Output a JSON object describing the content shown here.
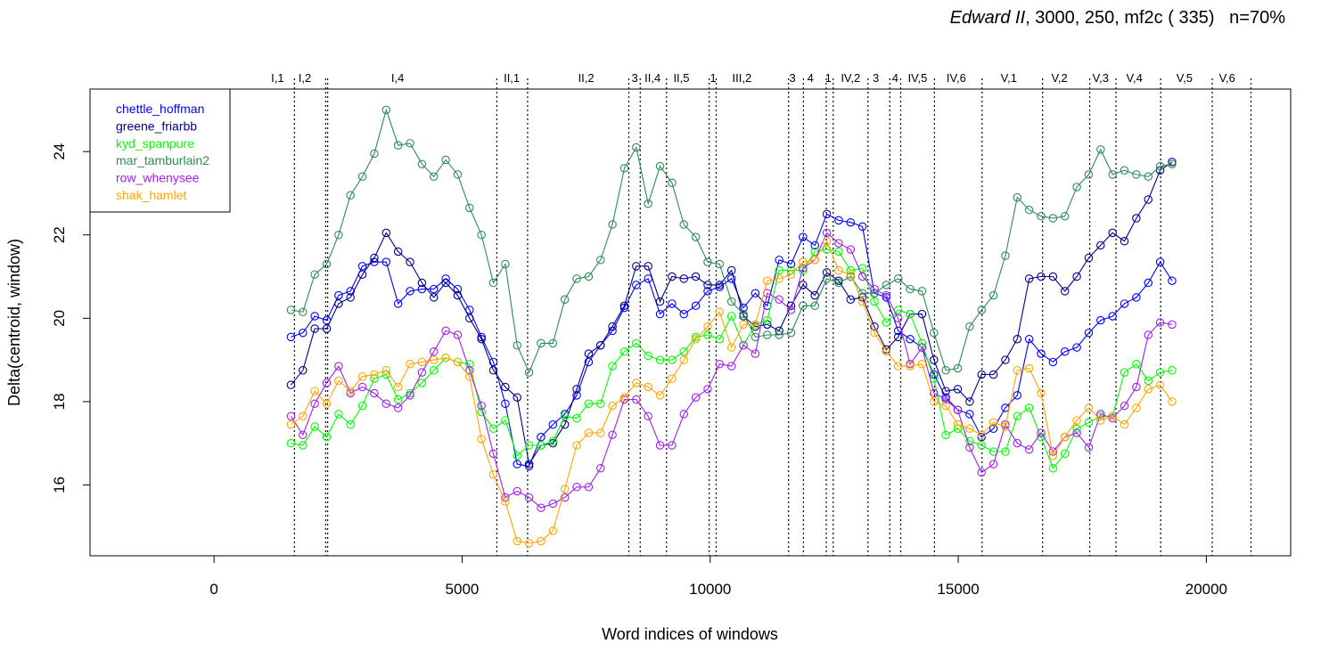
{
  "title": {
    "italic": "Edward II",
    "rest": ", 3000, 250, mf2c ( 335)   n=70%"
  },
  "chart_data": {
    "type": "line",
    "xlabel": "Word indices of windows",
    "ylabel": "Delta(centroid, window)",
    "xlim": [
      -2500,
      21700
    ],
    "ylim": [
      14.3,
      25.5
    ],
    "xticks": [
      0,
      5000,
      10000,
      15000,
      20000
    ],
    "xtick_labels": [
      "0",
      "5000",
      "10000",
      "15000",
      "20000"
    ],
    "yticks": [
      16,
      18,
      20,
      22,
      24
    ],
    "ytick_labels": [
      "16",
      "18",
      "20",
      "22",
      "24"
    ],
    "grid": false,
    "legend_position": "top-left",
    "scene_boundaries": [
      1620,
      2250,
      2290,
      5700,
      6320,
      8360,
      8590,
      9120,
      9980,
      10120,
      11580,
      11880,
      12340,
      12480,
      13180,
      13620,
      13840,
      14520,
      15480,
      16700,
      17650,
      18180,
      19080,
      20120,
      20900
    ],
    "scene_labels": [
      {
        "label": "I,1",
        "x": 1280
      },
      {
        "label": "I,2",
        "x": 1830
      },
      {
        "label": "I,4",
        "x": 3700
      },
      {
        "label": "II,1",
        "x": 6000
      },
      {
        "label": "II,2",
        "x": 7500
      },
      {
        "label": "3",
        "x": 8480
      },
      {
        "label": "II,4",
        "x": 8840
      },
      {
        "label": "II,5",
        "x": 9420
      },
      {
        "label": "1",
        "x": 10060
      },
      {
        "label": "III,2",
        "x": 10640
      },
      {
        "label": "3",
        "x": 11660
      },
      {
        "label": "4",
        "x": 12020
      },
      {
        "label": "1",
        "x": 12380
      },
      {
        "label": "IV,2",
        "x": 12830
      },
      {
        "label": "3",
        "x": 13340
      },
      {
        "label": "4",
        "x": 13730
      },
      {
        "label": "IV,5",
        "x": 14180
      },
      {
        "label": "IV,6",
        "x": 14960
      },
      {
        "label": "V,1",
        "x": 16020
      },
      {
        "label": "V,2",
        "x": 17040
      },
      {
        "label": "V,3",
        "x": 17870
      },
      {
        "label": "V,4",
        "x": 18550
      },
      {
        "label": "V,5",
        "x": 19560
      },
      {
        "label": "V,6",
        "x": 20420
      }
    ],
    "x": [
      1550,
      1790,
      2030,
      2270,
      2510,
      2750,
      2990,
      3230,
      3470,
      3710,
      3950,
      4190,
      4430,
      4670,
      4910,
      5150,
      5390,
      5630,
      5870,
      6110,
      6350,
      6590,
      6830,
      7070,
      7310,
      7550,
      7790,
      8030,
      8270,
      8510,
      8750,
      8990,
      9230,
      9470,
      9710,
      9950,
      10190,
      10430,
      10670,
      10910,
      11150,
      11390,
      11630,
      11870,
      12110,
      12350,
      12590,
      12830,
      13070,
      13310,
      13550,
      13790,
      14030,
      14270,
      14510,
      14750,
      14990,
      15230,
      15470,
      15710,
      15950,
      16190,
      16430,
      16670,
      16910,
      17150,
      17390,
      17630,
      17870,
      18110,
      18350,
      18590,
      18830,
      19070,
      19310
    ],
    "series": [
      {
        "name": "chettle_hoffman",
        "color": "#0000ff",
        "values": [
          19.55,
          19.65,
          20.05,
          19.95,
          20.55,
          20.65,
          21.25,
          21.35,
          21.35,
          20.35,
          20.65,
          20.7,
          20.7,
          20.95,
          20.7,
          20.2,
          19.55,
          18.95,
          17.95,
          16.5,
          16.45,
          17.15,
          17.45,
          17.7,
          18.15,
          18.95,
          19.35,
          19.7,
          20.25,
          20.8,
          20.95,
          20.1,
          20.35,
          20.1,
          20.3,
          20.65,
          20.75,
          20.95,
          20.25,
          20.6,
          20.3,
          21.4,
          21.3,
          21.95,
          21.75,
          22.5,
          22.35,
          22.3,
          22.2,
          20.6,
          20.5,
          19.7,
          19.5,
          19.3,
          18.65,
          18.1,
          17.8,
          17.7,
          17.15,
          17.35,
          17.85,
          18.15,
          19.5,
          19.15,
          18.95,
          19.2,
          19.3,
          19.65,
          19.95,
          20.05,
          20.35,
          20.5,
          20.85,
          21.35,
          20.9
        ]
      },
      {
        "name": "greene_friarbb",
        "color": "#00008b",
        "values": [
          18.4,
          18.75,
          19.75,
          19.75,
          20.35,
          20.5,
          21.05,
          21.45,
          22.05,
          21.6,
          21.35,
          20.85,
          20.5,
          20.85,
          20.55,
          20.0,
          19.5,
          18.75,
          18.35,
          18.1,
          16.5,
          16.95,
          17.0,
          17.45,
          18.3,
          19.15,
          19.35,
          19.8,
          20.3,
          21.25,
          21.25,
          20.4,
          21.0,
          20.95,
          21.0,
          20.8,
          20.8,
          21.15,
          20.05,
          19.8,
          19.85,
          19.7,
          20.3,
          20.8,
          20.55,
          21.1,
          20.9,
          20.45,
          20.5,
          19.8,
          19.25,
          19.55,
          20.1,
          20.1,
          19.0,
          18.25,
          18.3,
          18.0,
          18.65,
          18.65,
          19.0,
          19.5,
          20.95,
          21.0,
          21.0,
          20.65,
          21.0,
          21.45,
          21.75,
          22.05,
          21.85,
          22.4,
          22.85,
          23.55,
          23.75
        ]
      },
      {
        "name": "kyd_spanpure",
        "color": "#00ff00",
        "values": [
          17.0,
          16.95,
          17.4,
          17.15,
          17.7,
          17.45,
          17.9,
          18.55,
          18.65,
          18.05,
          18.2,
          18.45,
          18.75,
          19.05,
          18.95,
          18.9,
          17.75,
          17.35,
          17.55,
          16.7,
          16.95,
          16.95,
          17.05,
          17.65,
          17.6,
          17.95,
          17.95,
          18.85,
          19.2,
          19.4,
          19.1,
          19.0,
          19.0,
          19.2,
          19.55,
          19.6,
          19.5,
          20.05,
          19.35,
          19.85,
          19.95,
          21.15,
          21.15,
          21.15,
          21.6,
          21.65,
          21.6,
          21.15,
          21.2,
          20.4,
          19.9,
          20.2,
          20.1,
          19.4,
          18.55,
          17.2,
          17.35,
          17.05,
          16.95,
          16.8,
          16.8,
          17.65,
          17.85,
          17.15,
          16.4,
          16.75,
          17.35,
          17.5,
          17.65,
          17.65,
          18.7,
          18.9,
          18.5,
          18.7,
          18.75
        ]
      },
      {
        "name": "mar_tamburlain2",
        "color": "#2e8b57",
        "values": [
          20.2,
          20.15,
          21.05,
          21.3,
          22.0,
          22.95,
          23.4,
          23.95,
          25.0,
          24.15,
          24.2,
          23.7,
          23.4,
          23.8,
          23.45,
          22.65,
          22.0,
          20.85,
          21.3,
          19.35,
          18.7,
          19.4,
          19.4,
          20.45,
          20.95,
          21.0,
          21.4,
          22.25,
          23.6,
          24.1,
          22.75,
          23.65,
          23.25,
          22.25,
          21.95,
          21.35,
          21.3,
          20.4,
          20.1,
          19.55,
          19.6,
          19.6,
          19.65,
          20.3,
          20.3,
          20.95,
          20.85,
          21.0,
          20.6,
          20.6,
          20.8,
          20.95,
          20.7,
          20.65,
          19.65,
          18.75,
          18.8,
          19.8,
          20.2,
          20.55,
          21.5,
          22.9,
          22.6,
          22.45,
          22.4,
          22.45,
          23.15,
          23.45,
          24.05,
          23.45,
          23.55,
          23.45,
          23.4,
          23.65,
          23.7
        ]
      },
      {
        "name": "row_whenysee",
        "color": "#a020f0",
        "values": [
          17.65,
          17.2,
          17.95,
          18.45,
          18.85,
          18.2,
          18.35,
          18.2,
          17.95,
          17.85,
          18.15,
          18.7,
          19.2,
          19.7,
          19.6,
          18.75,
          17.9,
          16.75,
          15.7,
          15.85,
          15.7,
          15.45,
          15.55,
          15.7,
          15.95,
          15.95,
          16.4,
          17.2,
          18.05,
          18.05,
          17.65,
          16.95,
          16.95,
          17.7,
          18.1,
          18.3,
          18.9,
          18.85,
          19.35,
          19.15,
          20.6,
          20.45,
          20.2,
          21.2,
          21.4,
          22.05,
          21.8,
          21.65,
          21.0,
          20.7,
          20.55,
          20.0,
          18.9,
          19.3,
          18.2,
          18.05,
          17.8,
          16.9,
          16.3,
          16.5,
          17.45,
          17.0,
          16.85,
          17.25,
          16.8,
          17.15,
          17.25,
          16.9,
          17.7,
          17.6,
          17.9,
          18.35,
          19.6,
          19.9,
          19.85
        ]
      },
      {
        "name": "shak_hamlet",
        "color": "#ffa500",
        "values": [
          17.45,
          17.65,
          18.25,
          17.95,
          18.5,
          18.25,
          18.6,
          18.65,
          18.75,
          18.35,
          18.9,
          18.95,
          19.0,
          19.05,
          18.95,
          18.6,
          17.1,
          16.25,
          15.6,
          14.65,
          14.6,
          14.65,
          14.9,
          15.9,
          16.95,
          17.25,
          17.25,
          17.9,
          18.1,
          18.45,
          18.35,
          18.15,
          18.55,
          19.0,
          19.5,
          19.8,
          20.15,
          19.3,
          19.85,
          19.85,
          20.9,
          20.95,
          21.05,
          21.35,
          21.4,
          21.85,
          21.15,
          21.05,
          20.4,
          19.65,
          19.2,
          18.85,
          18.85,
          18.9,
          18.0,
          17.9,
          17.45,
          17.35,
          17.2,
          17.5,
          17.4,
          18.75,
          18.8,
          18.2,
          16.7,
          17.15,
          17.55,
          17.85,
          17.55,
          17.65,
          17.45,
          17.85,
          18.3,
          18.4,
          18.0
        ]
      }
    ]
  }
}
